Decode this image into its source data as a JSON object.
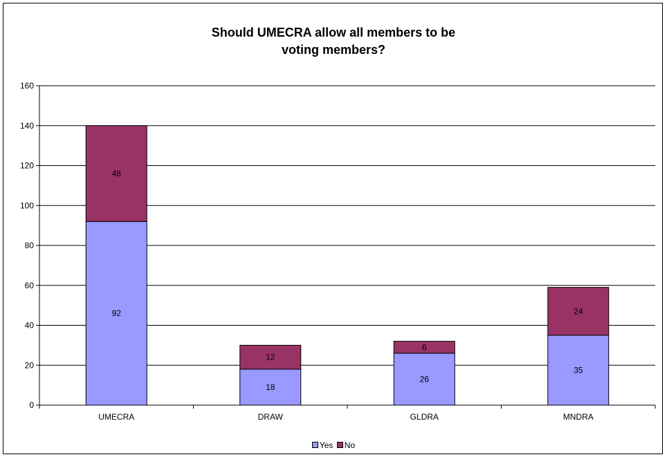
{
  "chart_data": {
    "type": "bar",
    "stacked": true,
    "title_lines": [
      "Should UMECRA allow all members to be",
      "voting members?"
    ],
    "categories": [
      "UMECRA",
      "DRAW",
      "GLDRA",
      "MNDRA"
    ],
    "series": [
      {
        "name": "Yes",
        "values": [
          92,
          18,
          26,
          35
        ],
        "color": "#9999FF"
      },
      {
        "name": "No",
        "values": [
          48,
          12,
          6,
          24
        ],
        "color": "#993366"
      }
    ],
    "ylim": [
      0,
      160
    ],
    "yticks": [
      0,
      20,
      40,
      60,
      80,
      100,
      120,
      140,
      160
    ],
    "grid": true,
    "legend_position": "bottom"
  }
}
